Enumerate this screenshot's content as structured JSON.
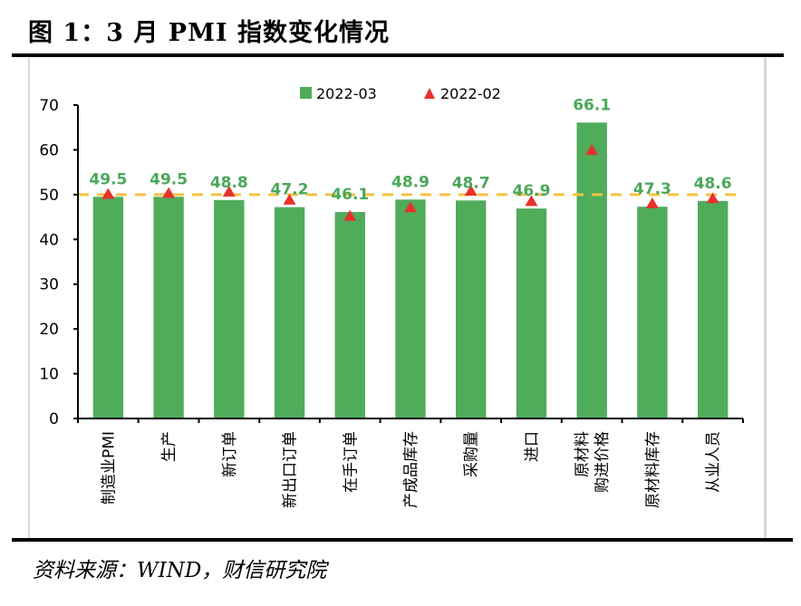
{
  "figure": {
    "title": "图 1：3 月 PMI 指数变化情况",
    "source": "资料来源：WIND，财信研究院"
  },
  "colors": {
    "bar": "#4fac5b",
    "marker": "#e8312a",
    "reference_line": "#f4c242",
    "data_label": "#4aa85a",
    "axis": "#000000"
  },
  "chart_data": {
    "type": "bar",
    "title": "3 月 PMI 指数变化情况",
    "xlabel": "",
    "ylabel": "",
    "ylim": [
      0,
      70
    ],
    "yticks": [
      0,
      10,
      20,
      30,
      40,
      50,
      60,
      70
    ],
    "ytick_labels": [
      "0",
      "10",
      "20",
      "30",
      "40",
      "50",
      "60",
      "70"
    ],
    "grid": false,
    "legend_position": "top-center",
    "reference_line": {
      "value": 50,
      "style": "dashed"
    },
    "categories": [
      [
        "制造业PMI"
      ],
      [
        "生产"
      ],
      [
        "新订单"
      ],
      [
        "新出口订单"
      ],
      [
        "在手订单"
      ],
      [
        "产成品库存"
      ],
      [
        "采购量"
      ],
      [
        "进口"
      ],
      [
        "原材料",
        "购进价格"
      ],
      [
        "原材料库存"
      ],
      [
        "从业人员"
      ]
    ],
    "series": [
      {
        "name": "2022-03",
        "type": "bar",
        "values": [
          49.5,
          49.5,
          48.8,
          47.2,
          46.1,
          48.9,
          48.7,
          46.9,
          66.1,
          47.3,
          48.6
        ],
        "labels": [
          "49.5",
          "49.5",
          "48.8",
          "47.2",
          "46.1",
          "48.9",
          "48.7",
          "46.9",
          "66.1",
          "47.3",
          "48.6"
        ]
      },
      {
        "name": "2022-02",
        "type": "marker-triangle",
        "values": [
          50.2,
          50.4,
          50.7,
          48.9,
          45.3,
          47.2,
          50.9,
          48.6,
          60.0,
          48.1,
          49.2
        ]
      }
    ]
  }
}
